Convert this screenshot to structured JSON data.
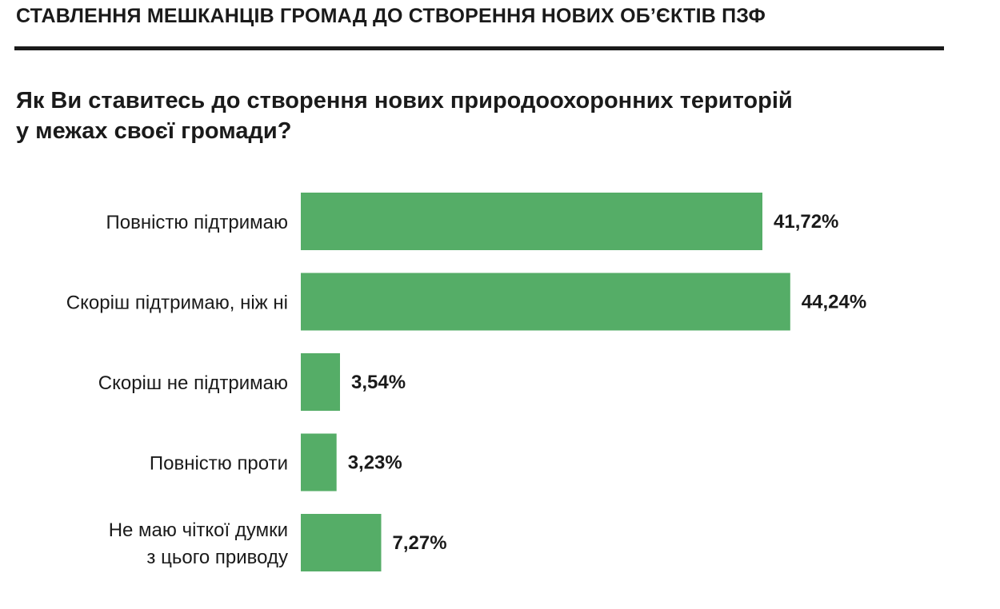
{
  "header": {
    "title": "СТАВЛЕННЯ МЕШКАНЦІВ ГРОМАД ДО СТВОРЕННЯ НОВИХ ОБ’ЄКТІВ ПЗФ"
  },
  "question": {
    "line1": "Як Ви ставитесь до створення нових природоохоронних територій",
    "line2": "у межах своєї громади?"
  },
  "chart_data": {
    "type": "bar",
    "orientation": "horizontal",
    "categories": [
      [
        "Повністю підтримаю"
      ],
      [
        "Скоріш підтримаю, ніж ні"
      ],
      [
        "Скоріш не підтримаю"
      ],
      [
        "Повністю проти"
      ],
      [
        "Не маю чіткої думки",
        "з цього приводу"
      ]
    ],
    "values": [
      41.72,
      44.24,
      3.54,
      3.23,
      7.27
    ],
    "value_labels": [
      "41,72%",
      "44,24%",
      "3,54%",
      "3,23%",
      "7,27%"
    ],
    "bar_color": "#55ad67",
    "xlim": [
      0,
      50
    ],
    "grid": false,
    "legend": "none"
  }
}
